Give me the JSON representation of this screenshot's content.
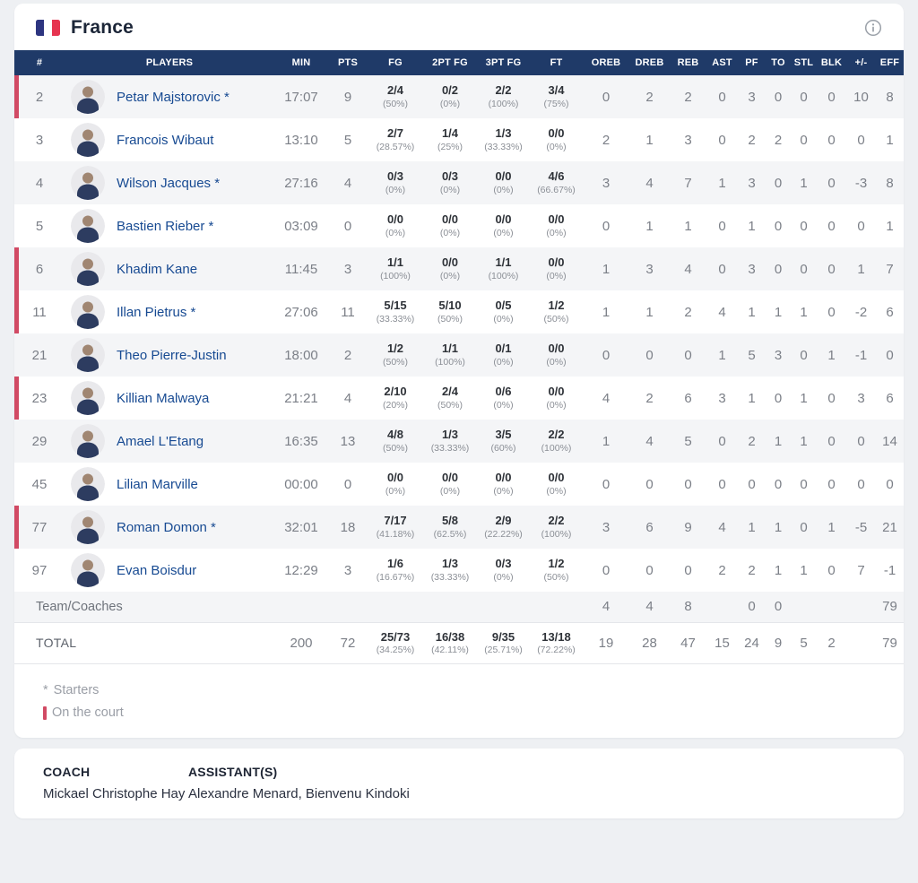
{
  "header": {
    "team_name": "France",
    "info_icon": "i"
  },
  "colors": {
    "header_navy": "#1f3a68",
    "on_court_red": "#d14a64",
    "player_name_blue": "#174a92",
    "flag_blue": "#2d3580",
    "flag_red": "#e63450"
  },
  "table": {
    "columns": [
      "#",
      "PLAYERS",
      "MIN",
      "PTS",
      "FG",
      "2PT FG",
      "3PT FG",
      "FT",
      "OREB",
      "DREB",
      "REB",
      "AST",
      "PF",
      "TO",
      "STL",
      "BLK",
      "+/-",
      "EFF"
    ],
    "players": [
      {
        "number": "2",
        "name": "Petar Majstorovic",
        "starter": true,
        "on_court": true,
        "min": "17:07",
        "pts": "9",
        "fg": "2/4",
        "fg_pct": "(50%)",
        "pt2": "0/2",
        "pt2_pct": "(0%)",
        "pt3": "2/2",
        "pt3_pct": "(100%)",
        "ft": "3/4",
        "ft_pct": "(75%)",
        "oreb": "0",
        "dreb": "2",
        "reb": "2",
        "ast": "0",
        "pf": "3",
        "to": "0",
        "stl": "0",
        "blk": "0",
        "pm": "10",
        "eff": "8"
      },
      {
        "number": "3",
        "name": "Francois Wibaut",
        "starter": false,
        "on_court": false,
        "min": "13:10",
        "pts": "5",
        "fg": "2/7",
        "fg_pct": "(28.57%)",
        "pt2": "1/4",
        "pt2_pct": "(25%)",
        "pt3": "1/3",
        "pt3_pct": "(33.33%)",
        "ft": "0/0",
        "ft_pct": "(0%)",
        "oreb": "2",
        "dreb": "1",
        "reb": "3",
        "ast": "0",
        "pf": "2",
        "to": "2",
        "stl": "0",
        "blk": "0",
        "pm": "0",
        "eff": "1"
      },
      {
        "number": "4",
        "name": "Wilson Jacques",
        "starter": true,
        "on_court": false,
        "min": "27:16",
        "pts": "4",
        "fg": "0/3",
        "fg_pct": "(0%)",
        "pt2": "0/3",
        "pt2_pct": "(0%)",
        "pt3": "0/0",
        "pt3_pct": "(0%)",
        "ft": "4/6",
        "ft_pct": "(66.67%)",
        "oreb": "3",
        "dreb": "4",
        "reb": "7",
        "ast": "1",
        "pf": "3",
        "to": "0",
        "stl": "1",
        "blk": "0",
        "pm": "-3",
        "eff": "8"
      },
      {
        "number": "5",
        "name": "Bastien Rieber",
        "starter": true,
        "on_court": false,
        "min": "03:09",
        "pts": "0",
        "fg": "0/0",
        "fg_pct": "(0%)",
        "pt2": "0/0",
        "pt2_pct": "(0%)",
        "pt3": "0/0",
        "pt3_pct": "(0%)",
        "ft": "0/0",
        "ft_pct": "(0%)",
        "oreb": "0",
        "dreb": "1",
        "reb": "1",
        "ast": "0",
        "pf": "1",
        "to": "0",
        "stl": "0",
        "blk": "0",
        "pm": "0",
        "eff": "1"
      },
      {
        "number": "6",
        "name": "Khadim Kane",
        "starter": false,
        "on_court": true,
        "min": "11:45",
        "pts": "3",
        "fg": "1/1",
        "fg_pct": "(100%)",
        "pt2": "0/0",
        "pt2_pct": "(0%)",
        "pt3": "1/1",
        "pt3_pct": "(100%)",
        "ft": "0/0",
        "ft_pct": "(0%)",
        "oreb": "1",
        "dreb": "3",
        "reb": "4",
        "ast": "0",
        "pf": "3",
        "to": "0",
        "stl": "0",
        "blk": "0",
        "pm": "1",
        "eff": "7"
      },
      {
        "number": "11",
        "name": "Illan Pietrus",
        "starter": true,
        "on_court": true,
        "min": "27:06",
        "pts": "11",
        "fg": "5/15",
        "fg_pct": "(33.33%)",
        "pt2": "5/10",
        "pt2_pct": "(50%)",
        "pt3": "0/5",
        "pt3_pct": "(0%)",
        "ft": "1/2",
        "ft_pct": "(50%)",
        "oreb": "1",
        "dreb": "1",
        "reb": "2",
        "ast": "4",
        "pf": "1",
        "to": "1",
        "stl": "1",
        "blk": "0",
        "pm": "-2",
        "eff": "6"
      },
      {
        "number": "21",
        "name": "Theo Pierre-Justin",
        "starter": false,
        "on_court": false,
        "min": "18:00",
        "pts": "2",
        "fg": "1/2",
        "fg_pct": "(50%)",
        "pt2": "1/1",
        "pt2_pct": "(100%)",
        "pt3": "0/1",
        "pt3_pct": "(0%)",
        "ft": "0/0",
        "ft_pct": "(0%)",
        "oreb": "0",
        "dreb": "0",
        "reb": "0",
        "ast": "1",
        "pf": "5",
        "to": "3",
        "stl": "0",
        "blk": "1",
        "pm": "-1",
        "eff": "0"
      },
      {
        "number": "23",
        "name": "Killian Malwaya",
        "starter": false,
        "on_court": true,
        "min": "21:21",
        "pts": "4",
        "fg": "2/10",
        "fg_pct": "(20%)",
        "pt2": "2/4",
        "pt2_pct": "(50%)",
        "pt3": "0/6",
        "pt3_pct": "(0%)",
        "ft": "0/0",
        "ft_pct": "(0%)",
        "oreb": "4",
        "dreb": "2",
        "reb": "6",
        "ast": "3",
        "pf": "1",
        "to": "0",
        "stl": "1",
        "blk": "0",
        "pm": "3",
        "eff": "6"
      },
      {
        "number": "29",
        "name": "Amael L'Etang",
        "starter": false,
        "on_court": false,
        "min": "16:35",
        "pts": "13",
        "fg": "4/8",
        "fg_pct": "(50%)",
        "pt2": "1/3",
        "pt2_pct": "(33.33%)",
        "pt3": "3/5",
        "pt3_pct": "(60%)",
        "ft": "2/2",
        "ft_pct": "(100%)",
        "oreb": "1",
        "dreb": "4",
        "reb": "5",
        "ast": "0",
        "pf": "2",
        "to": "1",
        "stl": "1",
        "blk": "0",
        "pm": "0",
        "eff": "14"
      },
      {
        "number": "45",
        "name": "Lilian Marville",
        "starter": false,
        "on_court": false,
        "min": "00:00",
        "pts": "0",
        "fg": "0/0",
        "fg_pct": "(0%)",
        "pt2": "0/0",
        "pt2_pct": "(0%)",
        "pt3": "0/0",
        "pt3_pct": "(0%)",
        "ft": "0/0",
        "ft_pct": "(0%)",
        "oreb": "0",
        "dreb": "0",
        "reb": "0",
        "ast": "0",
        "pf": "0",
        "to": "0",
        "stl": "0",
        "blk": "0",
        "pm": "0",
        "eff": "0"
      },
      {
        "number": "77",
        "name": "Roman Domon",
        "starter": true,
        "on_court": true,
        "min": "32:01",
        "pts": "18",
        "fg": "7/17",
        "fg_pct": "(41.18%)",
        "pt2": "5/8",
        "pt2_pct": "(62.5%)",
        "pt3": "2/9",
        "pt3_pct": "(22.22%)",
        "ft": "2/2",
        "ft_pct": "(100%)",
        "oreb": "3",
        "dreb": "6",
        "reb": "9",
        "ast": "4",
        "pf": "1",
        "to": "1",
        "stl": "0",
        "blk": "1",
        "pm": "-5",
        "eff": "21"
      },
      {
        "number": "97",
        "name": "Evan Boisdur",
        "starter": false,
        "on_court": false,
        "min": "12:29",
        "pts": "3",
        "fg": "1/6",
        "fg_pct": "(16.67%)",
        "pt2": "1/3",
        "pt2_pct": "(33.33%)",
        "pt3": "0/3",
        "pt3_pct": "(0%)",
        "ft": "1/2",
        "ft_pct": "(50%)",
        "oreb": "0",
        "dreb": "0",
        "reb": "0",
        "ast": "2",
        "pf": "2",
        "to": "1",
        "stl": "1",
        "blk": "0",
        "pm": "7",
        "eff": "-1"
      }
    ],
    "team_row": {
      "label": "Team/Coaches",
      "oreb": "4",
      "dreb": "4",
      "reb": "8",
      "ast": "",
      "pf": "0",
      "to": "0",
      "stl": "",
      "blk": "",
      "pm": "",
      "eff": "79"
    },
    "total_row": {
      "label": "TOTAL",
      "min": "200",
      "pts": "72",
      "fg": "25/73",
      "fg_pct": "(34.25%)",
      "pt2": "16/38",
      "pt2_pct": "(42.11%)",
      "pt3": "9/35",
      "pt3_pct": "(25.71%)",
      "ft": "13/18",
      "ft_pct": "(72.22%)",
      "oreb": "19",
      "dreb": "28",
      "reb": "47",
      "ast": "15",
      "pf": "24",
      "to": "9",
      "stl": "5",
      "blk": "2",
      "pm": "",
      "eff": "79"
    }
  },
  "legend": {
    "starters_mark": "*",
    "starters_label": "Starters",
    "on_court_label": "On the court"
  },
  "staff": {
    "coach_label": "COACH",
    "coach_name": "Mickael Christophe Hay",
    "assistants_label": "ASSISTANT(S)",
    "assistants_names": "Alexandre Menard, Bienvenu Kindoki"
  }
}
